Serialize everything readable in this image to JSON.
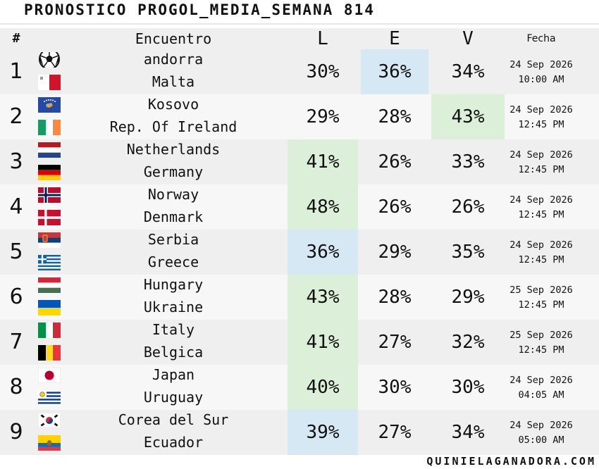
{
  "title": "PRONOSTICO PROGOL_MEDIA_SEMANA 814",
  "header": {
    "num": "#",
    "encuentro": "Encuentro",
    "l": "L",
    "e": "E",
    "v": "V",
    "fecha": "Fecha"
  },
  "colors": {
    "highlight_green": "#dcefd9",
    "highlight_blue": "#d6e8f4"
  },
  "rows": [
    {
      "num": "1",
      "home": "andorra",
      "away": "Malta",
      "home_icon": "soccer-ball-icon",
      "away_icon": "malta-flag-icon",
      "l": "30%",
      "e": "36%",
      "v": "34%",
      "date": "24 Sep 2026",
      "time": "10:00 AM",
      "highlight": "e",
      "highlight_color": "blue"
    },
    {
      "num": "2",
      "home": "Kosovo",
      "away": "Rep. Of Ireland",
      "home_icon": "kosovo-flag-icon",
      "away_icon": "ireland-flag-icon",
      "l": "29%",
      "e": "28%",
      "v": "43%",
      "date": "24 Sep 2026",
      "time": "12:45 PM",
      "highlight": "v",
      "highlight_color": "green"
    },
    {
      "num": "3",
      "home": "Netherlands",
      "away": "Germany",
      "home_icon": "netherlands-flag-icon",
      "away_icon": "germany-flag-icon",
      "l": "41%",
      "e": "26%",
      "v": "33%",
      "date": "24 Sep 2026",
      "time": "12:45 PM",
      "highlight": "l",
      "highlight_color": "green"
    },
    {
      "num": "4",
      "home": "Norway",
      "away": "Denmark",
      "home_icon": "norway-flag-icon",
      "away_icon": "denmark-flag-icon",
      "l": "48%",
      "e": "26%",
      "v": "26%",
      "date": "24 Sep 2026",
      "time": "12:45 PM",
      "highlight": "l",
      "highlight_color": "green"
    },
    {
      "num": "5",
      "home": "Serbia",
      "away": "Greece",
      "home_icon": "serbia-flag-icon",
      "away_icon": "greece-flag-icon",
      "l": "36%",
      "e": "29%",
      "v": "35%",
      "date": "24 Sep 2026",
      "time": "12:45 PM",
      "highlight": "l",
      "highlight_color": "blue"
    },
    {
      "num": "6",
      "home": "Hungary",
      "away": "Ukraine",
      "home_icon": "hungary-flag-icon",
      "away_icon": "ukraine-flag-icon",
      "l": "43%",
      "e": "28%",
      "v": "29%",
      "date": "25 Sep 2026",
      "time": "12:45 PM",
      "highlight": "l",
      "highlight_color": "green"
    },
    {
      "num": "7",
      "home": "Italy",
      "away": "Belgica",
      "home_icon": "italy-flag-icon",
      "away_icon": "belgium-flag-icon",
      "l": "41%",
      "e": "27%",
      "v": "32%",
      "date": "25 Sep 2026",
      "time": "12:45 PM",
      "highlight": "l",
      "highlight_color": "green"
    },
    {
      "num": "8",
      "home": "Japan",
      "away": "Uruguay",
      "home_icon": "japan-flag-icon",
      "away_icon": "uruguay-flag-icon",
      "l": "40%",
      "e": "30%",
      "v": "30%",
      "date": "24 Sep 2026",
      "time": "04:05 AM",
      "highlight": "l",
      "highlight_color": "green"
    },
    {
      "num": "9",
      "home": "Corea del Sur",
      "away": "Ecuador",
      "home_icon": "south-korea-flag-icon",
      "away_icon": "ecuador-flag-icon",
      "l": "39%",
      "e": "27%",
      "v": "34%",
      "date": "24 Sep 2026",
      "time": "05:00 AM",
      "highlight": "l",
      "highlight_color": "blue"
    }
  ],
  "footer": "quinielaganadora.com"
}
